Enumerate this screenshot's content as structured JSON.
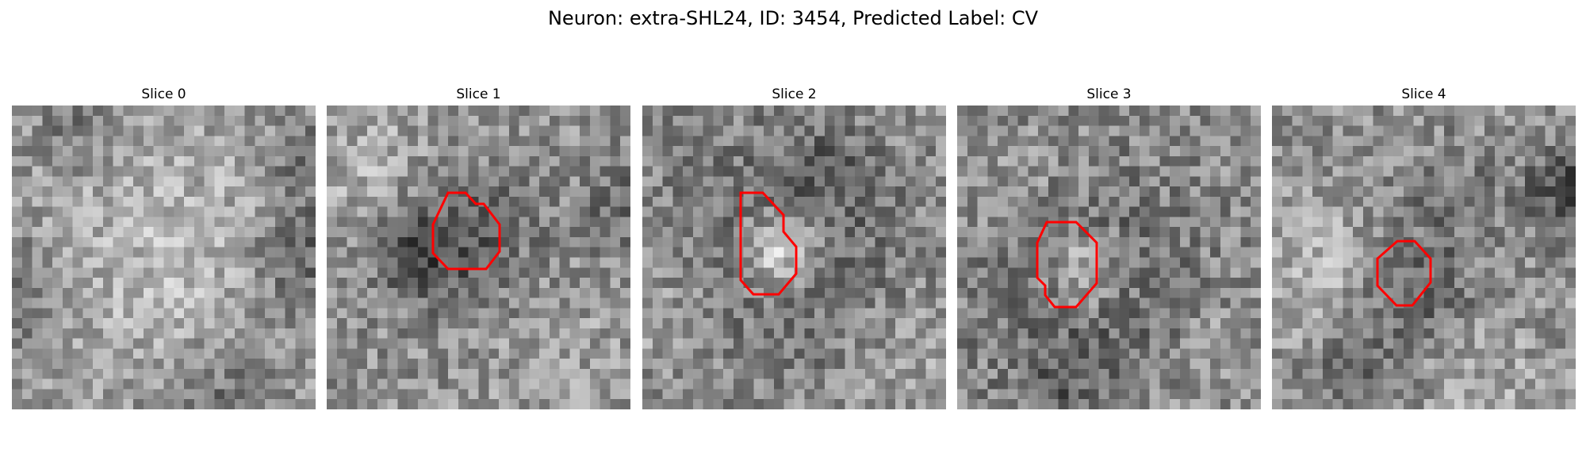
{
  "figure": {
    "title": "Neuron: extra-SHL24, ID: 3454, Predicted Label: CV"
  },
  "contour_color": "#ff0000",
  "colormap": "gray",
  "panels": [
    {
      "title": "Slice 0",
      "has_contour": false,
      "image_description": "grayscale pixel noise, bright diffuse centre, darker left edge and right strip"
    },
    {
      "title": "Slice 1",
      "has_contour": true,
      "image_description": "grayscale pixel noise, dark ring left of centre enclosed by red octagon"
    },
    {
      "title": "Slice 2",
      "has_contour": true,
      "image_description": "grayscale pixel noise, bright blob inside dark ring enclosed by red octagon"
    },
    {
      "title": "Slice 3",
      "has_contour": true,
      "image_description": "grayscale pixel noise, medium blob with dark rim enclosed by red octagon"
    },
    {
      "title": "Slice 4",
      "has_contour": true,
      "image_description": "grayscale pixel noise, dark band diagonally, small red octagon right of centre"
    }
  ]
}
